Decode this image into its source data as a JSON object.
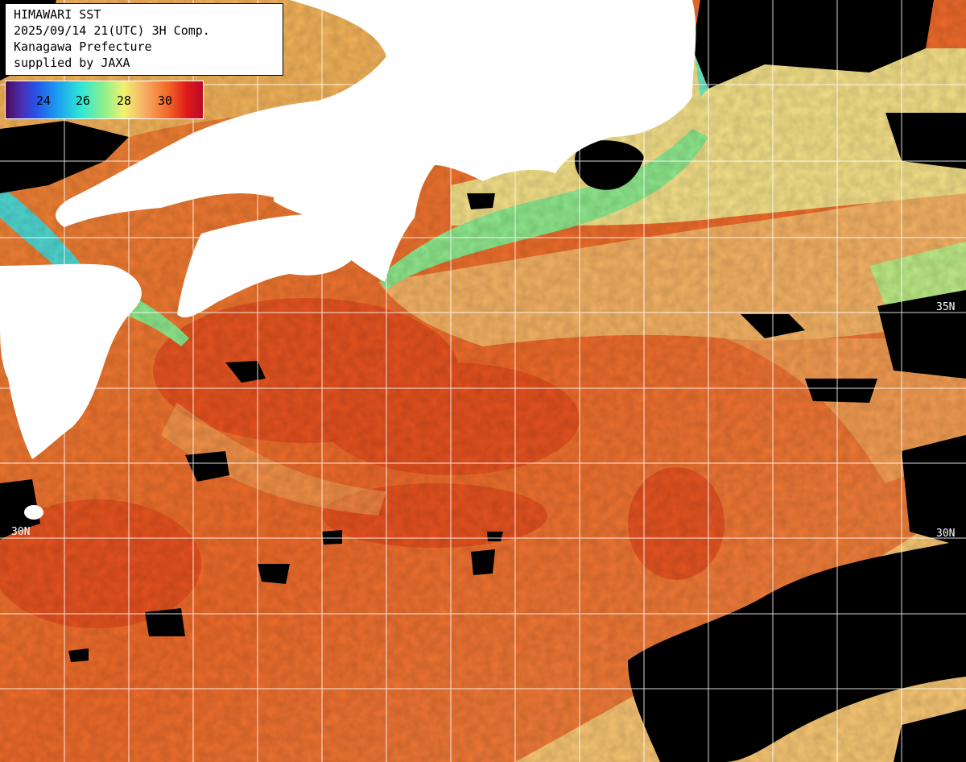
{
  "title": {
    "line1": "HIMAWARI SST",
    "line2": "2025/09/14 21(UTC) 3H Comp.",
    "line3": "Kanagawa Prefecture",
    "line4": "supplied by JAXA"
  },
  "colorbar": {
    "ticks": [
      "24",
      "26",
      "28",
      "30"
    ],
    "colors": [
      "#4a0a5a",
      "#2850e8",
      "#2ee6d6",
      "#f2f270",
      "#f26a2a",
      "#b80a2a"
    ]
  },
  "grid_labels": {
    "lat_35_right": "35N",
    "lat_30_left": "30N",
    "lat_30_right": "30N"
  },
  "palette": {
    "land": "#ffffff",
    "cloud_missing": "#000000",
    "warm_sea": "#ef6a28",
    "hot_sea": "#e0401a",
    "mid_sea": "#f6c070",
    "coastal_cool": "#8ee88c",
    "grid": "#ffffff"
  }
}
